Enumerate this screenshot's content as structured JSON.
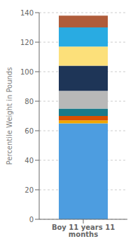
{
  "chart_data": {
    "type": "bar",
    "stacked": true,
    "categories": [
      "Boy 11 years 11 months"
    ],
    "series": [
      {
        "color": "#4d9de0",
        "values": [
          65
        ]
      },
      {
        "color": "#f0a500",
        "values": [
          2
        ]
      },
      {
        "color": "#d94f00",
        "values": [
          3
        ]
      },
      {
        "color": "#1a7a8a",
        "values": [
          5
        ]
      },
      {
        "color": "#b8b8b8",
        "values": [
          12
        ]
      },
      {
        "color": "#1e3557",
        "values": [
          17
        ]
      },
      {
        "color": "#fce07a",
        "values": [
          13
        ]
      },
      {
        "color": "#29abe2",
        "values": [
          13
        ]
      },
      {
        "color": "#b05c3a",
        "values": [
          8
        ]
      }
    ],
    "ylabel": "Percentile Weight in Pounds",
    "ylim": [
      0,
      140
    ],
    "yticks": [
      0,
      20,
      40,
      60,
      80,
      100,
      120,
      140
    ],
    "grid": true
  }
}
